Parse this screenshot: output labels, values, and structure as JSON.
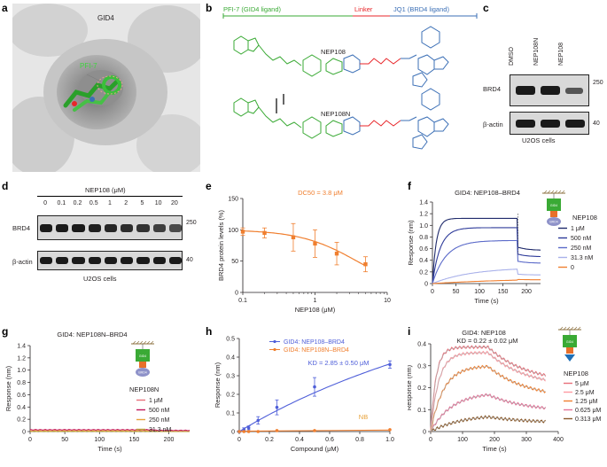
{
  "panel_letters": {
    "a": "a",
    "b": "b",
    "c": "c",
    "d": "d",
    "e": "e",
    "f": "f",
    "g": "g",
    "h": "h",
    "i": "i"
  },
  "panel_a": {
    "protein_label": "GID4",
    "ligand_label": "PFI-7"
  },
  "panel_b": {
    "legend_gid4": "PFI-7 (GID4 ligand)",
    "legend_linker": "Linker",
    "legend_brd4": "JQ1 (BRD4 ligand)",
    "compound1": "NEP108",
    "compound2": "NEP108N",
    "colors": {
      "gid4": "#3aaa35",
      "linker": "#e8262a",
      "brd4": "#3b6fb6"
    }
  },
  "panel_c": {
    "lanes": [
      "DMSO",
      "NEP108N",
      "NEP108"
    ],
    "row1_label": "BRD4",
    "row1_mw": "250",
    "row2_label": "β-actin",
    "row2_mw": "40",
    "cells": "U2OS cells"
  },
  "panel_d": {
    "header": "NEP108 (μM)",
    "lanes": [
      "0",
      "0.1",
      "0.2",
      "0.5",
      "1",
      "2",
      "5",
      "10",
      "20"
    ],
    "row1_label": "BRD4",
    "row1_mw": "250",
    "row2_label": "β-actin",
    "row2_mw": "40",
    "cells": "U2OS cells"
  },
  "chart_data": [
    {
      "panel": "e",
      "type": "scatter",
      "annotation": "DC50 = 3.8 μM",
      "xlabel": "NEP108 (μM)",
      "ylabel": "BRD4 protein levels (%)",
      "xscale": "log",
      "xlim": [
        0.1,
        10
      ],
      "ylim": [
        0,
        150
      ],
      "xticks": [
        "0.1",
        "1",
        "10"
      ],
      "yticks": [
        "0",
        "50",
        "100",
        "150"
      ],
      "x": [
        0.1,
        0.2,
        0.5,
        1,
        2,
        5
      ],
      "y": [
        97,
        95,
        88,
        78,
        62,
        45
      ],
      "err": [
        6,
        8,
        22,
        22,
        18,
        12
      ],
      "color": "#f07f2f"
    },
    {
      "panel": "f",
      "type": "line",
      "title": "GID4: NEP108–BRD4",
      "xlabel": "Time (s)",
      "ylabel": "Response (nm)",
      "xlim": [
        0,
        230
      ],
      "ylim": [
        0,
        1.4
      ],
      "xticks": [
        "0",
        "50",
        "100",
        "150",
        "200"
      ],
      "yticks": [
        "0",
        "0.2",
        "0.4",
        "0.6",
        "0.8",
        "1.0",
        "1.2",
        "1.4"
      ],
      "legend_title": "NEP108",
      "series": [
        {
          "name": "1 μM",
          "color": "#1f2a6b",
          "plateau": 1.12,
          "k": 0.12,
          "after": 0.62
        },
        {
          "name": "500 nM",
          "color": "#2e3b9a",
          "plateau": 0.96,
          "k": 0.06,
          "after": 0.5
        },
        {
          "name": "250 nM",
          "color": "#5b6ac9",
          "plateau": 0.74,
          "k": 0.035,
          "after": 0.38
        },
        {
          "name": "31.3 nM",
          "color": "#a9b1ea",
          "plateau": 0.28,
          "k": 0.012,
          "after": 0.16
        },
        {
          "name": "0",
          "color": "#f07f2f",
          "plateau": 0.1,
          "k": 0.005,
          "after": 0.07
        }
      ]
    },
    {
      "panel": "g",
      "type": "line",
      "title": "GID4: NEP108N–BRD4",
      "xlabel": "Time (s)",
      "ylabel": "Response (nm)",
      "xlim": [
        0,
        230
      ],
      "ylim": [
        0,
        1.4
      ],
      "xticks": [
        "0",
        "50",
        "100",
        "150",
        "200"
      ],
      "yticks": [
        "0",
        "0.2",
        "0.4",
        "0.6",
        "0.8",
        "1.0",
        "1.2",
        "1.4"
      ],
      "legend_title": "NEP108N",
      "series": [
        {
          "name": "1 μM",
          "color": "#e8707a",
          "level": 0.02
        },
        {
          "name": "500 nM",
          "color": "#c2185b",
          "level": 0.03
        },
        {
          "name": "250 nM",
          "color": "#e8a23a",
          "level": 0.01
        },
        {
          "name": "31.3 nM",
          "color": "#b8a03a",
          "level": 0.0
        }
      ]
    },
    {
      "panel": "h",
      "type": "scatter",
      "xlabel": "Compound (μM)",
      "ylabel": "Response (nm)",
      "xlim": [
        0,
        1.0
      ],
      "ylim": [
        0,
        0.5
      ],
      "xticks": [
        "0",
        "0.2",
        "0.4",
        "0.6",
        "0.8",
        "1.0"
      ],
      "yticks": [
        "0",
        "0.1",
        "0.2",
        "0.3",
        "0.4",
        "0.5"
      ],
      "annotation": "KD = 2.85 ± 0.50 μM",
      "nb_label": "NB",
      "series": [
        {
          "name": "GID4: NEP108–BRD4",
          "color": "#4f5fd9",
          "x": [
            0,
            0.031,
            0.0625,
            0.125,
            0.25,
            0.5,
            1.0
          ],
          "y": [
            0.0,
            0.01,
            0.02,
            0.06,
            0.13,
            0.24,
            0.36
          ],
          "err": [
            0.005,
            0.01,
            0.01,
            0.02,
            0.04,
            0.05,
            0.02
          ]
        },
        {
          "name": "GID4: NEP108N–BRD4",
          "color": "#f07f2f",
          "x": [
            0,
            0.031,
            0.0625,
            0.125,
            0.25,
            0.5,
            1.0
          ],
          "y": [
            0.0,
            0.0,
            0.0,
            0.0,
            0.005,
            0.005,
            0.01
          ],
          "err": [
            0,
            0,
            0,
            0,
            0,
            0,
            0
          ]
        }
      ]
    },
    {
      "panel": "i",
      "type": "line",
      "title": "GID4: NEP108",
      "annotation": "KD = 0.22 ± 0.02 μM",
      "xlabel": "Time (s)",
      "ylabel": "Response (nm)",
      "xlim": [
        0,
        400
      ],
      "ylim": [
        0,
        0.4
      ],
      "xticks": [
        "0",
        "100",
        "200",
        "300",
        "400"
      ],
      "yticks": [
        "0",
        "0.1",
        "0.2",
        "0.3",
        "0.4"
      ],
      "legend_title": "NEP108",
      "series": [
        {
          "name": "5 μM",
          "color": "#e8707a",
          "plateau": 0.385,
          "k": 0.06,
          "end": 0.22
        },
        {
          "name": "2.5 μM",
          "color": "#ff9aa2",
          "plateau": 0.36,
          "k": 0.04,
          "end": 0.2
        },
        {
          "name": "1.25 μM",
          "color": "#f07f2f",
          "plateau": 0.3,
          "k": 0.025,
          "end": 0.15
        },
        {
          "name": "0.625 μM",
          "color": "#e57399",
          "plateau": 0.18,
          "k": 0.015,
          "end": 0.09
        },
        {
          "name": "0.313 μM",
          "color": "#8a5a2b",
          "plateau": 0.08,
          "k": 0.01,
          "end": 0.04
        }
      ]
    }
  ]
}
